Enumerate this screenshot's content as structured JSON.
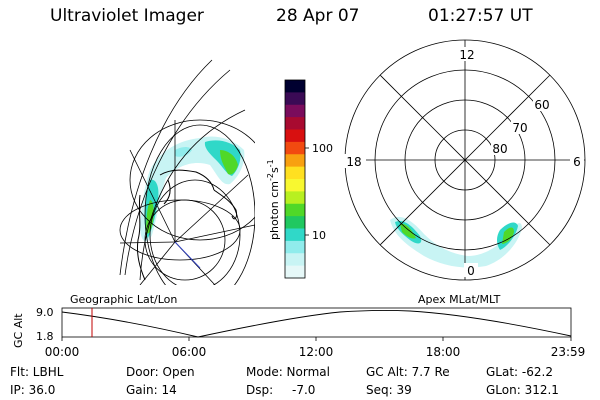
{
  "header": {
    "title": "Ultraviolet Imager",
    "date": "28 Apr 07",
    "time": "01:27:57 UT"
  },
  "colorbar": {
    "label_main": "photon cm",
    "label_exp1": "-2",
    "label_s": "s",
    "label_exp2": "-1",
    "tick_100": "100",
    "tick_10": "10",
    "colors": [
      "#000030",
      "#3a0a55",
      "#7a0c5c",
      "#a80a30",
      "#d81010",
      "#f24a10",
      "#f8a010",
      "#ffe020",
      "#f8f830",
      "#b8f020",
      "#50d828",
      "#20c860",
      "#30d8c8",
      "#90ecec",
      "#c8f4f4",
      "#e6f8f8"
    ]
  },
  "polar_plot": {
    "label_top": "12",
    "label_left": "18",
    "label_right": "6",
    "label_bottom": "0",
    "ring_60": "60",
    "ring_70": "70",
    "ring_80": "80"
  },
  "timeline": {
    "left_label": "Geographic Lat/Lon",
    "right_label": "Apex MLat/MLT",
    "axis_title": "GC Alt",
    "y_top": "9.0",
    "y_bottom": "1.8",
    "x_ticks": [
      "00:00",
      "06:00",
      "12:00",
      "18:00",
      "23:59"
    ],
    "marker_color": "#c00000"
  },
  "info": {
    "filter": "Flt: LBHL",
    "door": "Door: Open",
    "mode": "Mode: Normal",
    "gc_alt": "GC Alt: 7.7 Re",
    "glat": "GLat: -62.2",
    "ip": "IP: 36.0",
    "gain": "Gain: 14",
    "dsp_label": "Dsp:",
    "dsp_value": "-7.0",
    "seq": "Seq: 39",
    "glon": "GLon: 312.1"
  }
}
